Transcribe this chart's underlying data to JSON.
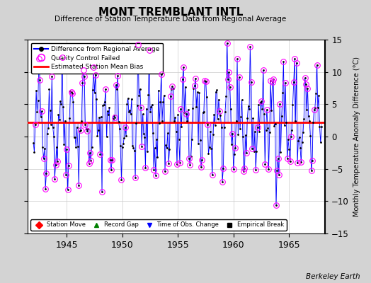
{
  "title": "MONT TREMBLANT INTL",
  "subtitle": "Difference of Station Temperature Data from Regional Average",
  "ylabel_right": "Monthly Temperature Anomaly Difference (°C)",
  "credit": "Berkeley Earth",
  "xlim": [
    1941.5,
    1968.2
  ],
  "ylim": [
    -15,
    15
  ],
  "yticks": [
    -15,
    -10,
    -5,
    0,
    5,
    10,
    15
  ],
  "xticks": [
    1945,
    1950,
    1955,
    1960,
    1965
  ],
  "bias": 2.2,
  "fig_bg_color": "#d3d3d3",
  "plot_bg_color": "#ffffff",
  "seed": 42,
  "n_points": 312,
  "start_year": 1942.0,
  "seasonal_amp": 4.8,
  "noise_std": 3.2,
  "qc_threshold": 5.5,
  "qc_random_prob": 0.12
}
